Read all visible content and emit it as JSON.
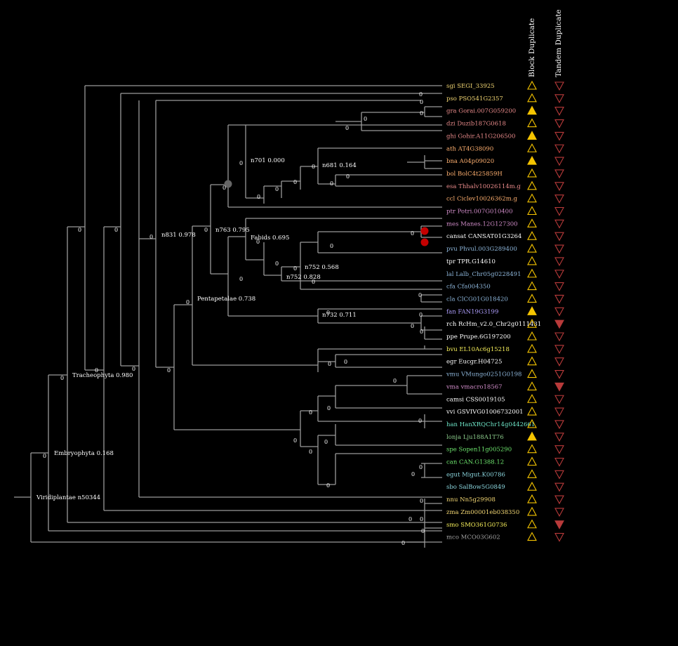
{
  "colors": {
    "branch": "#9a9a9a",
    "block_marker": "#f5c400",
    "tandem_marker": "#b83a3a",
    "red_dot": "#c40000",
    "grey_dot": "#666666"
  },
  "columns": {
    "block": "Block Duplicate",
    "tandem": "Tandem Duplicate"
  },
  "leaves": [
    {
      "label": "sgi SEGI_33925",
      "color": "#f2d673",
      "block": false,
      "tandem": false
    },
    {
      "label": "pso PSO541G2357",
      "color": "#f2d673",
      "block": false,
      "tandem": false
    },
    {
      "label": "gra Gorai.007G059200",
      "color": "#e88a8a",
      "block": true,
      "tandem": false
    },
    {
      "label": "dzi Duzib187G0618",
      "color": "#e88a8a",
      "block": false,
      "tandem": false
    },
    {
      "label": "ghi Gohir.A11G206500",
      "color": "#e88a8a",
      "block": true,
      "tandem": false
    },
    {
      "label": "ath AT4G38090",
      "color": "#ffb070",
      "block": false,
      "tandem": false
    },
    {
      "label": "bna A04p09020",
      "color": "#ffb070",
      "block": true,
      "tandem": false
    },
    {
      "label": "bol BolC4t25859H",
      "color": "#ffb070",
      "block": false,
      "tandem": false
    },
    {
      "label": "esa Thhalv10026114m.g",
      "color": "#e88a8a",
      "block": false,
      "tandem": false
    },
    {
      "label": "ccl Ciclev10026362m.g",
      "color": "#ffb070",
      "block": false,
      "tandem": false
    },
    {
      "label": "ptr Potri.007G010400",
      "color": "#d08cc8",
      "block": false,
      "tandem": false
    },
    {
      "label": "mes Manes.12G127300",
      "color": "#d08cc8",
      "block": false,
      "tandem": false
    },
    {
      "label": "cansat CANSAT01G3264",
      "color": "#ffffff",
      "block": false,
      "tandem": false
    },
    {
      "label": "pvu Phvul.003G289400",
      "color": "#8cb4d8",
      "block": false,
      "tandem": false
    },
    {
      "label": "tpr TPR.G14610",
      "color": "#ffffff",
      "block": false,
      "tandem": false
    },
    {
      "label": "lal Lalb_Chr05g0228491",
      "color": "#8cb4d8",
      "block": false,
      "tandem": false
    },
    {
      "label": "cfa Cfa004350",
      "color": "#8cb4d8",
      "block": false,
      "tandem": false
    },
    {
      "label": "cla ClCG01G018420",
      "color": "#8cb4d8",
      "block": false,
      "tandem": false
    },
    {
      "label": "fan FAN19G3199",
      "color": "#b0a0ff",
      "block": true,
      "tandem": false
    },
    {
      "label": "rch RcHm_v2.0_Chr2g0111431",
      "color": "#ffffff",
      "block": false,
      "tandem": true
    },
    {
      "label": "ppe Prupe.6G197200",
      "color": "#ffffff",
      "block": false,
      "tandem": false
    },
    {
      "label": "bvu EL10Ac6g15218",
      "color": "#f5ee5a",
      "block": false,
      "tandem": false
    },
    {
      "label": "egr Eucgr.H04725",
      "color": "#ffffff",
      "block": false,
      "tandem": false
    },
    {
      "label": "vmu VMungo0251G0198",
      "color": "#8cb4d8",
      "block": false,
      "tandem": false
    },
    {
      "label": "vma vmacro18567",
      "color": "#d08cc8",
      "block": false,
      "tandem": true
    },
    {
      "label": "camsi CSS0019105",
      "color": "#ffffff",
      "block": false,
      "tandem": false
    },
    {
      "label": "vvi GSVIVG01006732001",
      "color": "#ffffff",
      "block": false,
      "tandem": false
    },
    {
      "label": "han HanXRQChr14g0442661",
      "color": "#6ee6c8",
      "block": false,
      "tandem": false
    },
    {
      "label": "lonja Lju188A1T76",
      "color": "#8ccc8c",
      "block": true,
      "tandem": false
    },
    {
      "label": "spe Sopen11g005290",
      "color": "#6ee66e",
      "block": false,
      "tandem": false
    },
    {
      "label": "can CAN.G1388.12",
      "color": "#6ee66e",
      "block": false,
      "tandem": false
    },
    {
      "label": "egut Migut.K00786",
      "color": "#8cd8e0",
      "block": false,
      "tandem": false
    },
    {
      "label": "sbo SalBow5G0849",
      "color": "#8cd8e0",
      "block": false,
      "tandem": false
    },
    {
      "label": "nnu Nn5g29908",
      "color": "#f2d673",
      "block": false,
      "tandem": false
    },
    {
      "label": "zma Zm00001eb038350",
      "color": "#f2d673",
      "block": false,
      "tandem": false
    },
    {
      "label": "smo SMO361G0736",
      "color": "#f5ee5a",
      "block": false,
      "tandem": true
    },
    {
      "label": "mco MCO03G602",
      "color": "#a0a0a0",
      "block": false,
      "tandem": false
    }
  ],
  "clade_labels": [
    "Viridiplantae n50344",
    "Embryophyta 0.168",
    "Tracheophyta 0.980",
    "n831 0.978",
    "Pentapetalae 0.738",
    "n763 0.795",
    "n701 0.000",
    "n681 0.164",
    "Fabids 0.695",
    "n752 0.568",
    "n752 0.828",
    "n732 0.711"
  ],
  "zero_label": "0"
}
